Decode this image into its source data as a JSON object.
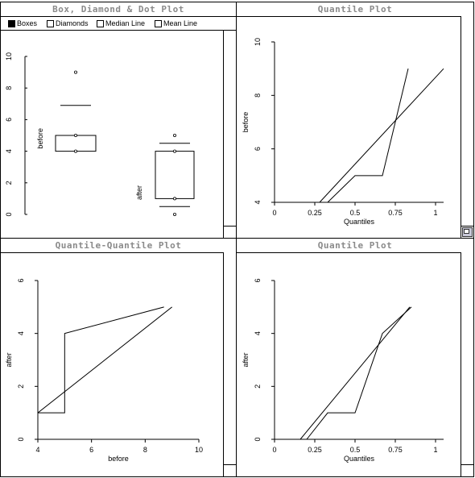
{
  "window": {
    "grid_line_color": "#000000"
  },
  "panes": {
    "box_plot": {
      "title": "Box, Diamond & Dot Plot",
      "legend": [
        {
          "label": "Boxes",
          "checked": true
        },
        {
          "label": "Diamonds",
          "checked": false
        },
        {
          "label": "Median Line",
          "checked": false
        },
        {
          "label": "Mean Line",
          "checked": false
        }
      ]
    },
    "quantile_before": {
      "title": "Quantile Plot",
      "resize_icon": "resize-icon"
    },
    "qq_plot": {
      "title": "Quantile-Quantile Plot"
    },
    "quantile_after": {
      "title": "Quantile Plot"
    }
  },
  "chart_data": [
    {
      "id": "box_plot",
      "type": "box",
      "ylim": [
        0,
        10
      ],
      "yticks": [
        "0",
        "2",
        "4",
        "6",
        "8",
        "10"
      ],
      "groups": [
        {
          "name": "before",
          "box": [
            4,
            5
          ],
          "mean_line": 6.9,
          "points": [
            4,
            5,
            9
          ]
        },
        {
          "name": "after",
          "box": [
            1,
            4
          ],
          "whisker_lines": [
            0.5,
            4.5
          ],
          "points": [
            0,
            1,
            4,
            5
          ]
        }
      ]
    },
    {
      "id": "quantile_before",
      "type": "line",
      "title": "Quantile Plot",
      "xlabel": "Quantiles",
      "ylabel": "before",
      "xlim": [
        0,
        1.05
      ],
      "ylim": [
        4,
        10
      ],
      "xticks": [
        "0",
        "0.25",
        "0.5",
        "0.75",
        "1"
      ],
      "yticks": [
        "4",
        "6",
        "8",
        "10"
      ],
      "series": [
        {
          "values": [
            [
              0.17,
              4
            ],
            [
              0.33,
              4
            ],
            [
              0.5,
              5
            ],
            [
              0.67,
              5
            ],
            [
              0.83,
              9
            ]
          ]
        },
        {
          "values": [
            [
              0.28,
              4
            ],
            [
              1.05,
              9
            ]
          ]
        }
      ]
    },
    {
      "id": "qq_plot",
      "type": "line",
      "title": "Quantile-Quantile Plot",
      "xlabel": "before",
      "ylabel": "after",
      "xlim": [
        4,
        10
      ],
      "ylim": [
        0,
        6
      ],
      "xticks": [
        "4",
        "6",
        "8",
        "10"
      ],
      "yticks": [
        "0",
        "2",
        "4",
        "6"
      ],
      "series": [
        {
          "values": [
            [
              4,
              0
            ],
            [
              4,
              1
            ],
            [
              5,
              1
            ],
            [
              5,
              4
            ],
            [
              8.7,
              5
            ]
          ]
        },
        {
          "values": [
            [
              4,
              1
            ],
            [
              9,
              5
            ]
          ]
        }
      ]
    },
    {
      "id": "quantile_after",
      "type": "line",
      "title": "Quantile Plot",
      "xlabel": "Quantiles",
      "ylabel": "after",
      "xlim": [
        0,
        1.05
      ],
      "ylim": [
        0,
        6
      ],
      "xticks": [
        "0",
        "0.25",
        "0.5",
        "0.75",
        "1"
      ],
      "yticks": [
        "0",
        "2",
        "4",
        "6"
      ],
      "series": [
        {
          "values": [
            [
              0.2,
              0
            ],
            [
              0.33,
              1
            ],
            [
              0.5,
              1
            ],
            [
              0.67,
              4
            ],
            [
              0.85,
              5
            ]
          ]
        },
        {
          "values": [
            [
              0.16,
              0
            ],
            [
              0.84,
              5
            ]
          ]
        }
      ]
    }
  ]
}
